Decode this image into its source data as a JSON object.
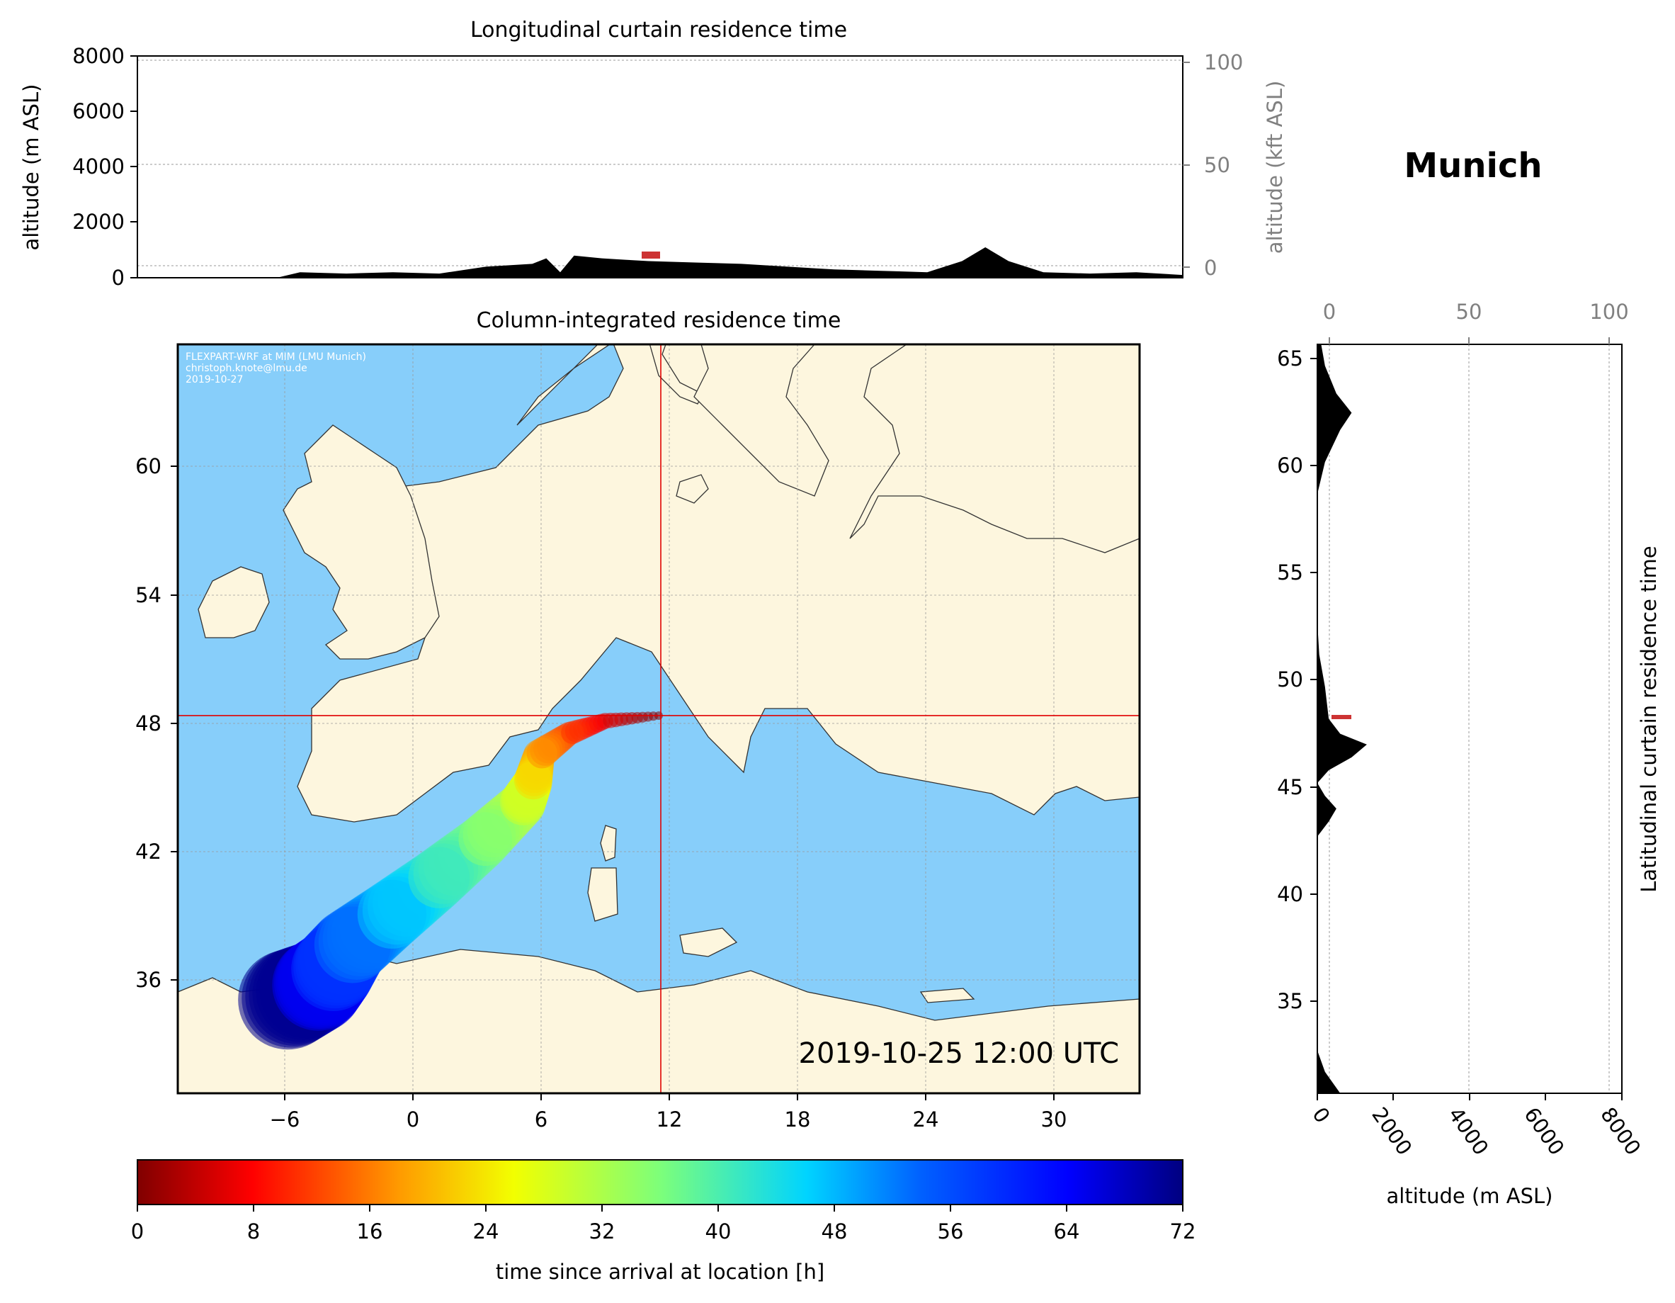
{
  "figure": {
    "location_name": "Munich",
    "timestamp": "2019-10-25 12:00 UTC",
    "credits": [
      "FLEXPART-WRF at MIM (LMU Munich)",
      "christoph.knote@lmu.de",
      "2019-10-27"
    ],
    "colors": {
      "ocean": "#87cefa",
      "land": "#fdf6de",
      "crosshair": "#e00000",
      "profile": "#000000"
    }
  },
  "top_panel": {
    "title": "Longitudinal curtain residence time",
    "ylabel_left": "altitude (m ASL)",
    "ylabel_right": "altitude (kft ASL)",
    "yticks_left": [
      "0",
      "2000",
      "4000",
      "6000",
      "8000"
    ],
    "yticks_right": [
      "0",
      "50",
      "100"
    ]
  },
  "map_panel": {
    "title": "Column-integrated residence time",
    "xticks": [
      "−6",
      "0",
      "6",
      "12",
      "18",
      "24",
      "30"
    ],
    "yticks": [
      "36",
      "42",
      "48",
      "54",
      "60"
    ],
    "receptor": {
      "lon": 11.6,
      "lat": 48.15
    }
  },
  "side_panel": {
    "ylabel": "Latitudinal curtain residence time",
    "xlabel": "altitude (m ASL)",
    "xticks_bottom": [
      "0",
      "2000",
      "4000",
      "6000",
      "8000"
    ],
    "xticks_top": [
      "0",
      "50",
      "100"
    ],
    "yticks": [
      "35",
      "40",
      "45",
      "50",
      "55",
      "60",
      "65"
    ]
  },
  "colorbar": {
    "label": "time since arrival at location [h]",
    "ticks": [
      "0",
      "8",
      "16",
      "24",
      "32",
      "40",
      "48",
      "56",
      "64",
      "72"
    ],
    "range": [
      0,
      72
    ],
    "colormap": "jet_r"
  },
  "chart_data": {
    "type": "map",
    "extent": {
      "lon": [
        -11,
        34
      ],
      "lat": [
        30.5,
        65.5
      ]
    },
    "trajectory_path": [
      {
        "lon": 11.5,
        "lat": 48.15,
        "hours": 0
      },
      {
        "lon": 9.0,
        "lat": 47.9,
        "hours": 6
      },
      {
        "lon": 7.3,
        "lat": 47.3,
        "hours": 12
      },
      {
        "lon": 5.9,
        "lat": 46.3,
        "hours": 18
      },
      {
        "lon": 5.6,
        "lat": 45.0,
        "hours": 24
      },
      {
        "lon": 5.1,
        "lat": 44.0,
        "hours": 30
      },
      {
        "lon": 3.2,
        "lat": 42.2,
        "hours": 36
      },
      {
        "lon": 1.0,
        "lat": 40.4,
        "hours": 42
      },
      {
        "lon": -1.2,
        "lat": 38.7,
        "hours": 48
      },
      {
        "lon": -3.0,
        "lat": 37.3,
        "hours": 54
      },
      {
        "lon": -3.8,
        "lat": 36.2,
        "hours": 60
      },
      {
        "lon": -4.5,
        "lat": 35.5,
        "hours": 66
      },
      {
        "lon": -6.0,
        "lat": 34.8,
        "hours": 72
      }
    ],
    "lon_curtain_profile": [
      {
        "lon": -11,
        "alt": 0
      },
      {
        "lon": -5,
        "alt": 0
      },
      {
        "lon": -4,
        "alt": 200
      },
      {
        "lon": -2,
        "alt": 150
      },
      {
        "lon": 0,
        "alt": 200
      },
      {
        "lon": 2,
        "alt": 150
      },
      {
        "lon": 4,
        "alt": 400
      },
      {
        "lon": 6,
        "alt": 500
      },
      {
        "lon": 6.6,
        "alt": 700
      },
      {
        "lon": 7.2,
        "alt": 200
      },
      {
        "lon": 7.8,
        "alt": 800
      },
      {
        "lon": 9,
        "alt": 700
      },
      {
        "lon": 10,
        "alt": 650
      },
      {
        "lon": 11,
        "alt": 600
      },
      {
        "lon": 13,
        "alt": 550
      },
      {
        "lon": 15,
        "alt": 500
      },
      {
        "lon": 17,
        "alt": 400
      },
      {
        "lon": 19,
        "alt": 300
      },
      {
        "lon": 21,
        "alt": 250
      },
      {
        "lon": 23,
        "alt": 200
      },
      {
        "lon": 24.5,
        "alt": 600
      },
      {
        "lon": 25.5,
        "alt": 1100
      },
      {
        "lon": 26.5,
        "alt": 600
      },
      {
        "lon": 28,
        "alt": 200
      },
      {
        "lon": 30,
        "alt": 150
      },
      {
        "lon": 32,
        "alt": 200
      },
      {
        "lon": 34,
        "alt": 100
      }
    ],
    "lat_curtain_profile": [
      {
        "lat": 30.5,
        "alt": 600
      },
      {
        "lat": 31.5,
        "alt": 200
      },
      {
        "lat": 32.5,
        "alt": 0
      },
      {
        "lat": 42.5,
        "alt": 0
      },
      {
        "lat": 43.2,
        "alt": 300
      },
      {
        "lat": 43.8,
        "alt": 500
      },
      {
        "lat": 44.4,
        "alt": 200
      },
      {
        "lat": 45.0,
        "alt": 0
      },
      {
        "lat": 45.6,
        "alt": 300
      },
      {
        "lat": 46.2,
        "alt": 900
      },
      {
        "lat": 46.8,
        "alt": 1300
      },
      {
        "lat": 47.3,
        "alt": 600
      },
      {
        "lat": 48.0,
        "alt": 300
      },
      {
        "lat": 49.5,
        "alt": 200
      },
      {
        "lat": 51.0,
        "alt": 50
      },
      {
        "lat": 52.5,
        "alt": 0
      },
      {
        "lat": 58.5,
        "alt": 0
      },
      {
        "lat": 60,
        "alt": 200
      },
      {
        "lat": 61.5,
        "alt": 600
      },
      {
        "lat": 62.3,
        "alt": 900
      },
      {
        "lat": 63.2,
        "alt": 500
      },
      {
        "lat": 64.5,
        "alt": 200
      },
      {
        "lat": 65.5,
        "alt": 100
      }
    ]
  }
}
